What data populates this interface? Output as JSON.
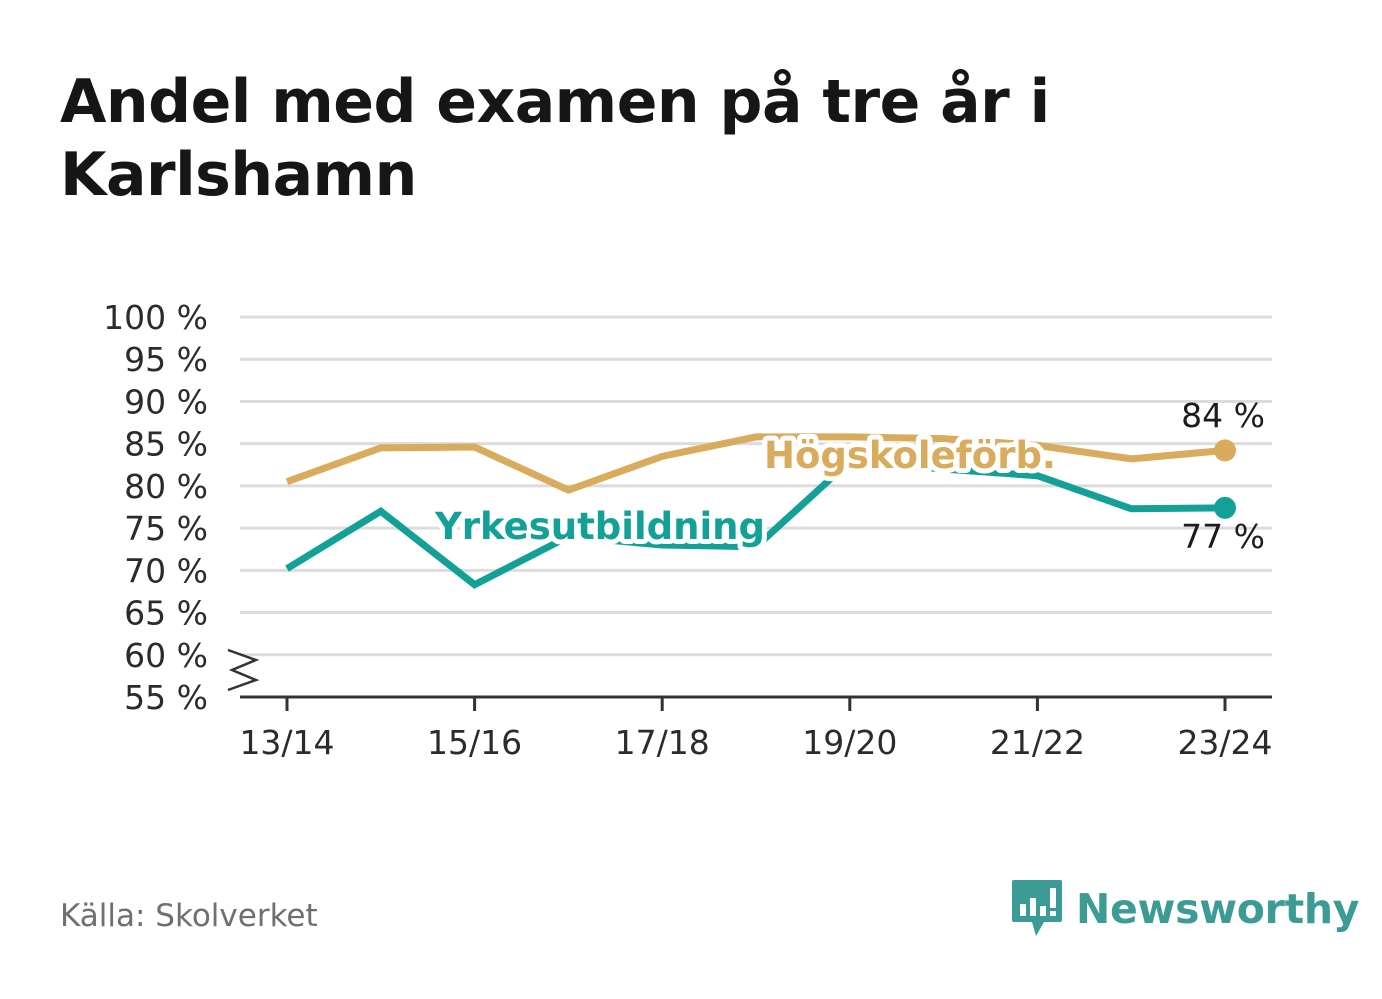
{
  "title": "Andel med examen på tre år i Karlshamn",
  "source": "Källa: Skolverket",
  "brand": {
    "name": "Newsworthy",
    "icon": "newsworthy-logo-icon",
    "color": "#3c9c95"
  },
  "chart_data": {
    "type": "line",
    "title": "Andel med examen på tre år i Karlshamn",
    "x": [
      "13/14",
      "14/15",
      "15/16",
      "16/17",
      "17/18",
      "18/19",
      "19/20",
      "20/21",
      "21/22",
      "22/23",
      "23/24"
    ],
    "x_tick_labels": [
      "13/14",
      "15/16",
      "17/18",
      "19/20",
      "21/22",
      "23/24"
    ],
    "y_tick_labels": [
      "100 %",
      "95 %",
      "90 %",
      "85 %",
      "80 %",
      "75 %",
      "70 %",
      "65 %",
      "60 %",
      "55 %"
    ],
    "ylim": [
      55,
      100
    ],
    "y_axis_break": true,
    "grid": true,
    "series": [
      {
        "name": "Högskoleförb.",
        "color": "#d8ac5c",
        "values": [
          80.5,
          84.5,
          84.6,
          79.5,
          83.5,
          85.8,
          85.8,
          85.6,
          84.8,
          83.2,
          84.2
        ],
        "end_label": "84 %"
      },
      {
        "name": "Yrkesutbildning",
        "color": "#13a197",
        "values": [
          70.2,
          77.0,
          68.3,
          74.0,
          73.0,
          72.8,
          82.9,
          82.0,
          81.2,
          77.3,
          77.4
        ],
        "end_label": "77 %"
      }
    ]
  }
}
